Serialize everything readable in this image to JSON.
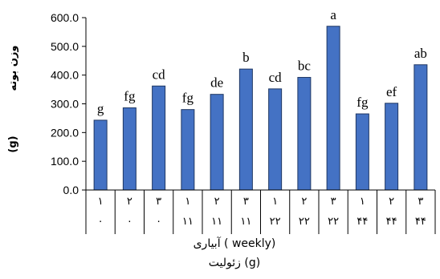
{
  "chart_data": {
    "type": "bar",
    "title": "",
    "ylabel_top": "وزن بوته",
    "ylabel_unit": "(g)",
    "xlabel_line1": "آبیاری ( weekly)",
    "xlabel_line2": "زئولیت (g)",
    "ylim": [
      0,
      600
    ],
    "yticks": [
      "0.0",
      "100.0",
      "200.0",
      "300.0",
      "400.0",
      "500.0",
      "600.0"
    ],
    "grid": false,
    "bar_color": "#4472C4",
    "bar_edge_color": "#1f3763",
    "categories_row1": [
      "۱",
      "۲",
      "۳",
      "۱",
      "۲",
      "۳",
      "۱",
      "۲",
      "۳",
      "۱",
      "۲",
      "۳"
    ],
    "categories_row2": [
      "۰",
      "۰",
      "۰",
      "۱۱",
      "۱۱",
      "۱۱",
      "۲۲",
      "۲۲",
      "۲۲",
      "۴۴",
      "۴۴",
      "۴۴"
    ],
    "values": [
      243,
      286,
      362,
      280,
      333,
      421,
      352,
      392,
      570,
      265,
      302,
      436
    ],
    "letters": [
      "g",
      "fg",
      "cd",
      "fg",
      "de",
      "b",
      "cd",
      "bc",
      "a",
      "fg",
      "ef",
      "ab"
    ]
  }
}
